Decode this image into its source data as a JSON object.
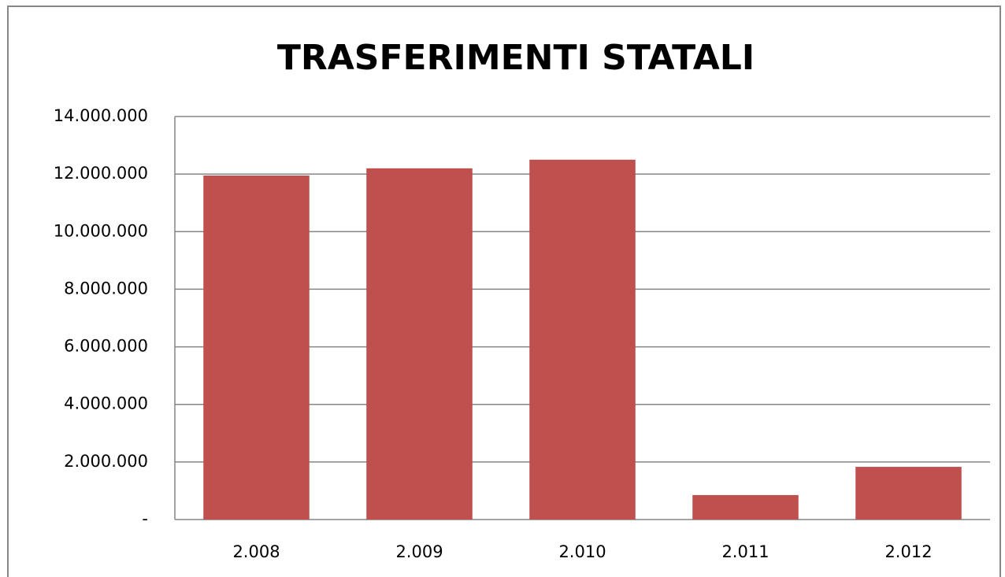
{
  "chart_data": {
    "type": "bar",
    "title": "TRASFERIMENTI STATALI",
    "categories": [
      "2.008",
      "2.009",
      "2.010",
      "2.011",
      "2.012"
    ],
    "values": [
      11950000,
      12200000,
      12500000,
      850000,
      1830000
    ],
    "color": "#c0504d",
    "ylim": [
      0,
      14000000
    ],
    "yticks": [
      {
        "value": 0,
        "label": "-"
      },
      {
        "value": 2000000,
        "label": "2.000.000"
      },
      {
        "value": 4000000,
        "label": "4.000.000"
      },
      {
        "value": 6000000,
        "label": "6.000.000"
      },
      {
        "value": 8000000,
        "label": "8.000.000"
      },
      {
        "value": 10000000,
        "label": "10.000.000"
      },
      {
        "value": 12000000,
        "label": "12.000.000"
      },
      {
        "value": 14000000,
        "label": "14.000.000"
      }
    ],
    "grid": true
  }
}
